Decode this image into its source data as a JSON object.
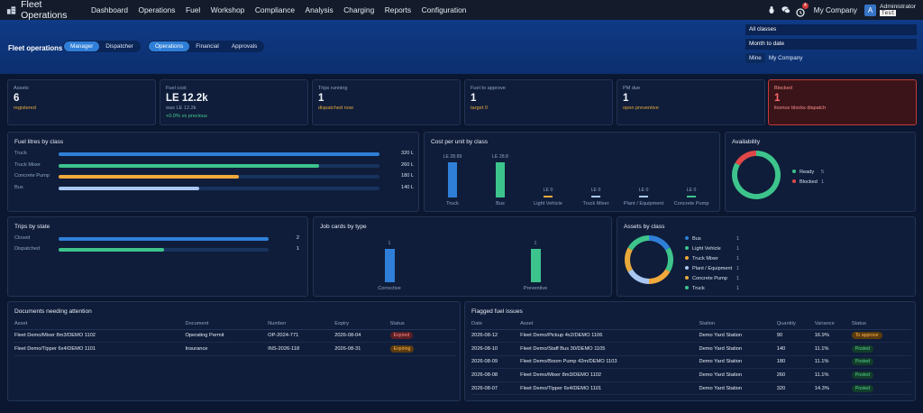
{
  "app": {
    "title": "Fleet Operations"
  },
  "nav": [
    "Dashboard",
    "Operations",
    "Fuel",
    "Workshop",
    "Compliance",
    "Analysis",
    "Charging",
    "Reports",
    "Configuration"
  ],
  "topright": {
    "notif_count": "4",
    "company": "My Company",
    "avatar": "A",
    "user_name": "Administrator",
    "user_tag": "Test"
  },
  "hero": {
    "title": "Fleet operations",
    "view_tabs": [
      "Manager",
      "Dispatcher"
    ],
    "view_active": "Manager",
    "area_tabs": [
      "Operations",
      "Financial",
      "Approvals"
    ],
    "area_active": "Operations"
  },
  "filters": {
    "class": "All classes",
    "period": "Month to date",
    "scope": [
      "Mine",
      "My Company"
    ],
    "scope_active": "Mine"
  },
  "kpis": [
    {
      "label": "Assets",
      "value": "6",
      "sub": "registered",
      "sub2": ""
    },
    {
      "label": "Fuel cost",
      "value": "LE 12.2k",
      "sub": "was LE 12.2k",
      "sub2": "+0.0% vs previous"
    },
    {
      "label": "Trips running",
      "value": "1",
      "sub": "dispatched now",
      "sub2": ""
    },
    {
      "label": "Fuel to approve",
      "value": "1",
      "sub": "target 0",
      "sub2": ""
    },
    {
      "label": "PM due",
      "value": "1",
      "sub": "open preventive",
      "sub2": ""
    },
    {
      "label": "Blocked",
      "value": "1",
      "sub": "licence blocks dispatch",
      "sub2": ""
    }
  ],
  "panels": {
    "fuel_litres": "Fuel litres by class",
    "cost_per_unit": "Cost per unit by class",
    "availability": "Availability",
    "trips": "Trips by state",
    "job_cards": "Job cards by type",
    "assets_class": "Assets by class",
    "documents": "Documents needing attention",
    "flagged": "Flagged fuel issues"
  },
  "colors": {
    "blue": "#2f7fd8",
    "green": "#3dc48c",
    "amber": "#f0a93b",
    "light": "#a9c7f2",
    "red": "#e04848"
  },
  "chart_data": [
    {
      "type": "bar",
      "title": "Fuel litres by class",
      "orientation": "horizontal",
      "categories": [
        "Truck",
        "Truck Mixer",
        "Concrete Pump",
        "Bus"
      ],
      "values": [
        320,
        260,
        180,
        140
      ],
      "labels": [
        "320 L",
        "260 L",
        "180 L",
        "140 L"
      ],
      "colors": [
        "#2f7fd8",
        "#3dc48c",
        "#f0a93b",
        "#a9c7f2"
      ]
    },
    {
      "type": "bar",
      "title": "Cost per unit by class",
      "categories": [
        "Truck",
        "Bus",
        "Light Vehicle",
        "Truck Mixer",
        "Plant / Equipment",
        "Concrete Pump"
      ],
      "values": [
        28.89,
        28.8,
        0,
        0,
        0,
        0
      ],
      "labels": [
        "LE 28.89",
        "LE 28.8",
        "LE 0",
        "LE 0",
        "LE 0",
        "LE 0"
      ],
      "colors": [
        "#2f7fd8",
        "#3dc48c",
        "#f0a93b",
        "#a9c7f2",
        "#a9c7f2",
        "#3dc48c"
      ]
    },
    {
      "type": "pie",
      "title": "Availability",
      "categories": [
        "Ready",
        "Blocked"
      ],
      "values": [
        5,
        1
      ],
      "colors": [
        "#3dc48c",
        "#e04848"
      ]
    },
    {
      "type": "bar",
      "title": "Trips by state",
      "orientation": "horizontal",
      "categories": [
        "Closed",
        "Dispatched"
      ],
      "values": [
        2,
        1
      ],
      "colors": [
        "#2f7fd8",
        "#3dc48c"
      ]
    },
    {
      "type": "bar",
      "title": "Job cards by type",
      "categories": [
        "Corrective",
        "Preventive"
      ],
      "values": [
        1,
        1
      ],
      "colors": [
        "#2f7fd8",
        "#3dc48c"
      ]
    },
    {
      "type": "pie",
      "title": "Assets by class",
      "categories": [
        "Bus",
        "Light Vehicle",
        "Truck Mixer",
        "Plant / Equipment",
        "Concrete Pump",
        "Truck"
      ],
      "values": [
        1,
        1,
        1,
        1,
        1,
        1
      ],
      "colors": [
        "#2f7fd8",
        "#3dc48c",
        "#f0a93b",
        "#a9c7f2",
        "#e8a93a",
        "#3dc48c"
      ]
    }
  ],
  "documents": {
    "headers": [
      "Asset",
      "Document",
      "Number",
      "Expiry",
      "Status"
    ],
    "rows": [
      [
        "Fleet Demo/Mixer 8m3/DEMO 1102",
        "Operating Permit",
        "OP-2024-771",
        "2026-08-04",
        "Expired"
      ],
      [
        "Fleet Demo/Tipper 6x4/DEMO 1101",
        "Insurance",
        "INS-2026-118",
        "2026-08-31",
        "Expiring"
      ]
    ]
  },
  "flagged": {
    "headers": [
      "Date",
      "Asset",
      "Station",
      "Quantity",
      "Variance",
      "Status"
    ],
    "rows": [
      [
        "2026-08-12",
        "Fleet Demo/Pickup 4x2/DEMO 1106",
        "Demo Yard Station",
        "90",
        "16.9%",
        "To approve"
      ],
      [
        "2026-08-10",
        "Fleet Demo/Staff Bus 30/DEMO 1105",
        "Demo Yard Station",
        "140",
        "11.1%",
        "Posted"
      ],
      [
        "2026-08-09",
        "Fleet Demo/Boom Pump 42m/DEMO 1103",
        "Demo Yard Station",
        "180",
        "11.1%",
        "Posted"
      ],
      [
        "2026-08-08",
        "Fleet Demo/Mixer 8m3/DEMO 1102",
        "Demo Yard Station",
        "260",
        "11.1%",
        "Posted"
      ],
      [
        "2026-08-07",
        "Fleet Demo/Tipper 6x4/DEMO 1101",
        "Demo Yard Station",
        "320",
        "14.3%",
        "Posted"
      ]
    ]
  }
}
